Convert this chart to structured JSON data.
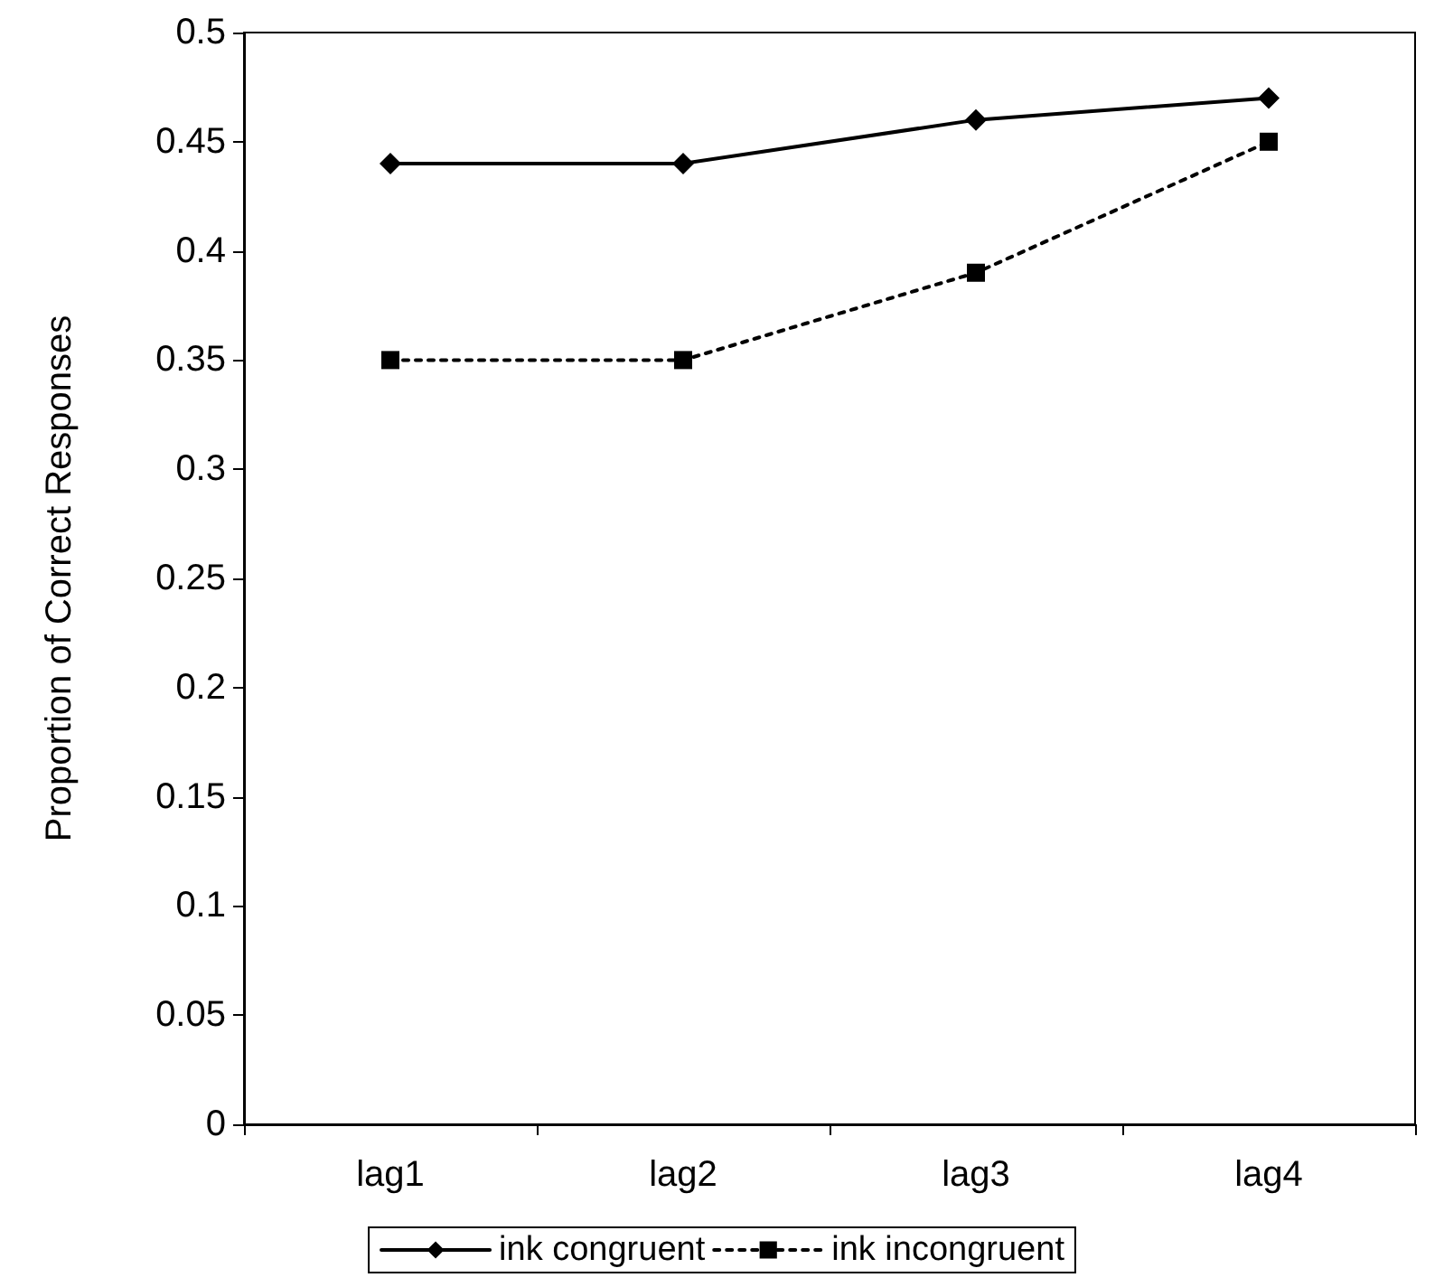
{
  "chart_data": {
    "type": "line",
    "ylabel": "Proportion of Correct Responses",
    "categories": [
      "lag1",
      "lag2",
      "lag3",
      "lag4"
    ],
    "series": [
      {
        "name": "ink congruent",
        "color": "#000000",
        "values": [
          0.44,
          0.44,
          0.46,
          0.47
        ],
        "marker": "diamond",
        "line_style": "solid"
      },
      {
        "name": "ink incongruent",
        "color": "#000000",
        "values": [
          0.35,
          0.35,
          0.39,
          0.45
        ],
        "marker": "square",
        "line_style": "dotted"
      }
    ],
    "ylim": [
      0,
      0.5
    ],
    "yticks": [
      0,
      0.05,
      0.1,
      0.15,
      0.2,
      0.25,
      0.3,
      0.35,
      0.4,
      0.45,
      0.5
    ],
    "grid": false,
    "legend": "bottom"
  }
}
